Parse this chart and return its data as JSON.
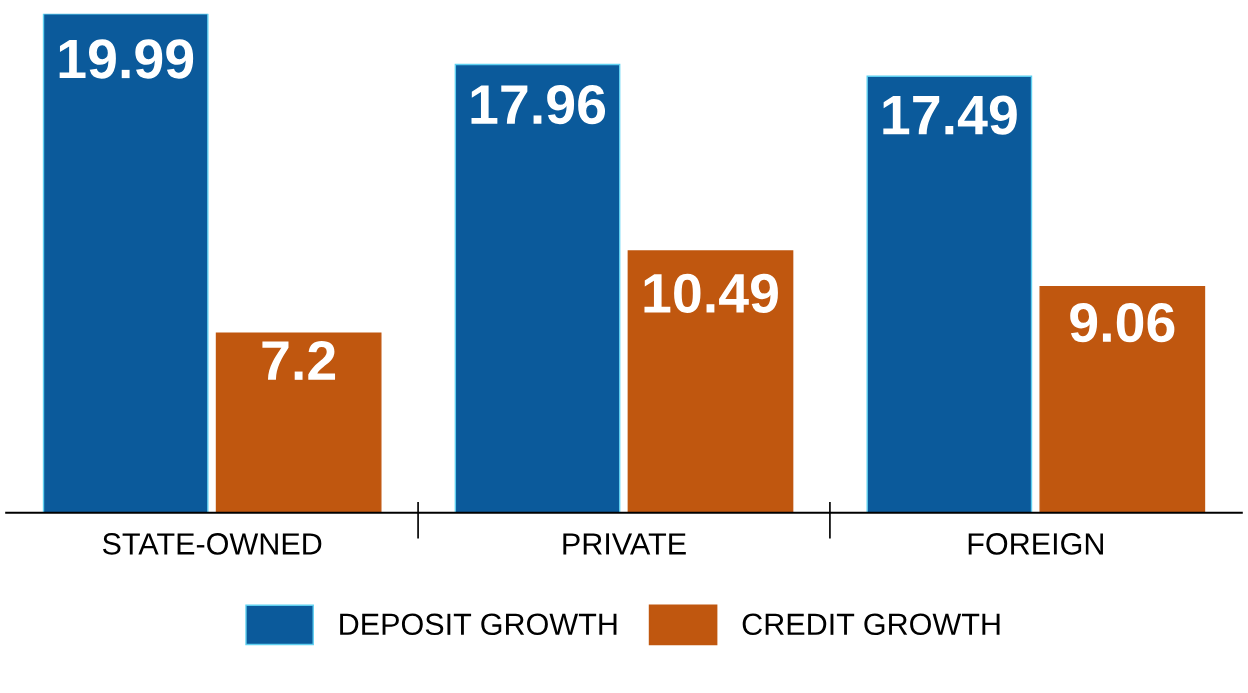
{
  "chart_data": {
    "type": "bar",
    "categories": [
      "STATE-OWNED",
      "PRIVATE",
      "FOREIGN"
    ],
    "series": [
      {
        "name": "DEPOSIT GROWTH",
        "color": "#0b5a9b",
        "values": [
          19.99,
          17.96,
          17.49
        ]
      },
      {
        "name": "CREDIT GROWTH",
        "color": "#c0570f",
        "values": [
          7.2,
          10.49,
          9.06
        ]
      }
    ],
    "data_labels": true,
    "grid": false,
    "legend": "bottom"
  }
}
